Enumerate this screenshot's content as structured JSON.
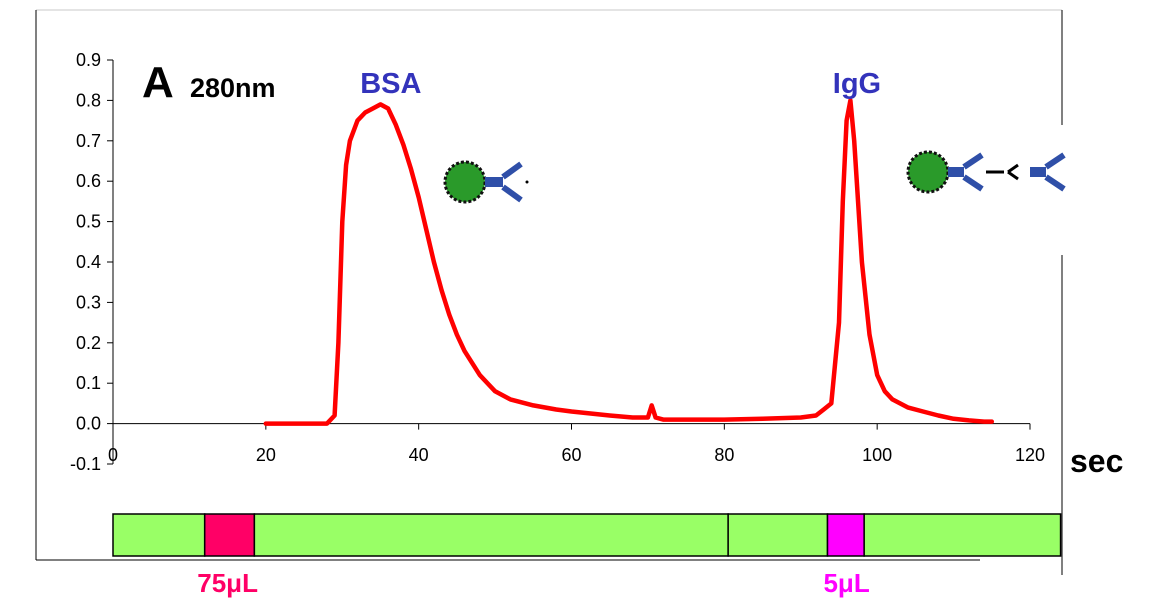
{
  "chart_data": {
    "type": "line",
    "ylabel_main": "A",
    "ylabel_sub": "280nm",
    "xlabel": "sec",
    "xlim": [
      0,
      120
    ],
    "ylim": [
      -0.1,
      0.9
    ],
    "x_ticks": [
      "0",
      "20",
      "40",
      "60",
      "80",
      "100",
      "120"
    ],
    "y_ticks": [
      "0.9",
      "0.8",
      "0.7",
      "0.6",
      "0.5",
      "0.4",
      "0.3",
      "0.2",
      "0.1",
      "0.0",
      "-0.1"
    ],
    "grid": false,
    "series": [
      {
        "color": "#ff0000",
        "x": [
          20,
          22,
          24,
          26,
          28,
          29,
          29.5,
          30,
          30.5,
          31,
          32,
          33,
          34,
          35,
          36,
          37,
          38,
          39,
          40,
          41,
          42,
          43,
          44,
          45,
          46,
          48,
          50,
          52,
          55,
          58,
          60,
          65,
          68,
          70,
          70.5,
          71,
          72,
          75,
          80,
          85,
          90,
          92,
          93,
          94,
          95,
          95.5,
          96,
          96.5,
          97,
          98,
          99,
          100,
          101,
          102,
          104,
          106,
          108,
          110,
          112,
          114,
          115
        ],
        "y": [
          0.0,
          0.0,
          0.0,
          0.0,
          0.0,
          0.02,
          0.2,
          0.5,
          0.64,
          0.7,
          0.75,
          0.77,
          0.78,
          0.79,
          0.78,
          0.74,
          0.69,
          0.63,
          0.56,
          0.48,
          0.4,
          0.33,
          0.27,
          0.22,
          0.18,
          0.12,
          0.08,
          0.06,
          0.045,
          0.035,
          0.03,
          0.02,
          0.015,
          0.015,
          0.045,
          0.015,
          0.01,
          0.01,
          0.01,
          0.012,
          0.015,
          0.02,
          0.035,
          0.05,
          0.25,
          0.55,
          0.75,
          0.8,
          0.7,
          0.4,
          0.22,
          0.12,
          0.08,
          0.06,
          0.04,
          0.03,
          0.02,
          0.012,
          0.008,
          0.005,
          0.005
        ]
      }
    ],
    "annotations": [
      {
        "text": "BSA",
        "x": 34,
        "y": 0.82,
        "color": "#3333bb"
      },
      {
        "text": "IgG",
        "x": 95,
        "y": 0.82,
        "color": "#3333bb"
      }
    ]
  },
  "flow_bar": {
    "segments": [
      {
        "start": 0,
        "end": 12,
        "color": "#99ff66"
      },
      {
        "start": 12,
        "end": 18.5,
        "color": "#ff0066"
      },
      {
        "start": 18.5,
        "end": 80.5,
        "color": "#99ff66"
      },
      {
        "start": 80.5,
        "end": 93.5,
        "color": "#99ff66"
      },
      {
        "start": 93.5,
        "end": 98.3,
        "color": "#ff00ff"
      },
      {
        "start": 98.3,
        "end": 124,
        "color": "#99ff66"
      }
    ],
    "labels": [
      {
        "text": "75μL",
        "x": 15,
        "color": "#ff0066"
      },
      {
        "text": "5μL",
        "x": 96,
        "color": "#ff00ff"
      }
    ]
  }
}
